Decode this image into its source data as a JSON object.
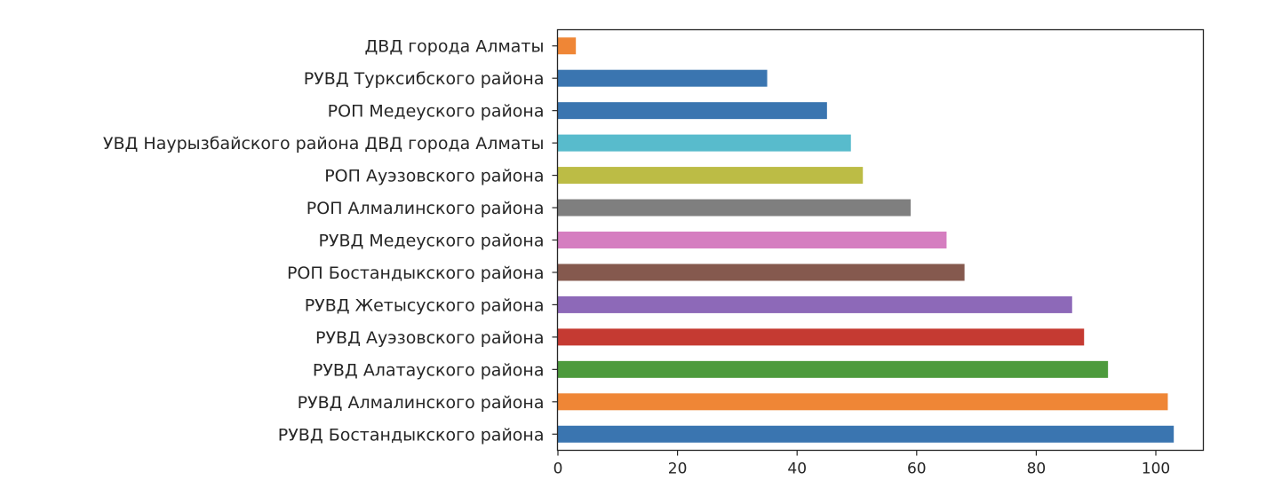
{
  "chart_data": {
    "type": "bar",
    "orientation": "horizontal",
    "title": "",
    "xlabel": "",
    "ylabel": "",
    "xlim": [
      0,
      108
    ],
    "xticks": [
      0,
      20,
      40,
      60,
      80,
      100
    ],
    "grid": false,
    "categories": [
      "РУВД Бостандыкского района",
      "РУВД Алмалинского района",
      "РУВД Алатауского района",
      "РУВД Ауэзовского района",
      "РУВД Жетысуского района",
      "РОП Бостандыкского района",
      "РУВД Медеуского района",
      "РОП Алмалинского района",
      "РОП Ауэзовского района",
      "УВД Наурызбайского района ДВД города Алматы",
      "РОП Медеуского района",
      "РУВД Турксибского района",
      "ДВД города Алматы"
    ],
    "values": [
      103,
      102,
      92,
      88,
      86,
      68,
      65,
      59,
      51,
      49,
      45,
      35,
      3
    ],
    "colors": [
      "#3a75b0",
      "#ef8636",
      "#4d9b3d",
      "#c53a32",
      "#8d69b8",
      "#85594e",
      "#d57ec0",
      "#7f7f7f",
      "#bcbc45",
      "#58bbcc",
      "#3a75b0",
      "#3a75b0",
      "#ef8636"
    ]
  }
}
